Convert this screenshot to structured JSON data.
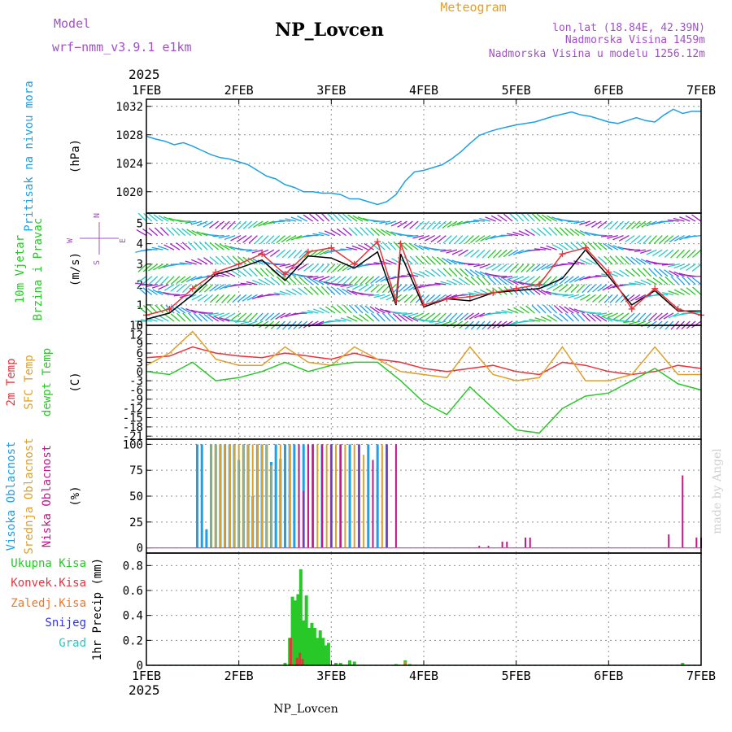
{
  "header": {
    "model_label": "Model",
    "model_value": "wrf−nmm_v3.9.1  e1km",
    "station": "NP_Lovcen",
    "product": "Meteogram",
    "coords": "lon,lat (18.84E, 42.39N)",
    "elevation": "Nadmorska Visina 1459m",
    "model_elevation": "Nadmorska Visina u modelu 1256.12m",
    "year_top": "2025",
    "year_bottom": "2025",
    "footer_station": "NP_Lovcen",
    "credit": "made by Angel"
  },
  "colors": {
    "pressure": "#1ea0e6",
    "wind_black": "#000000",
    "wind_red": "#e8323c",
    "temp2m": "#e8323c",
    "sfc": "#e0a028",
    "dewpt": "#28c828",
    "high_cloud": "#1ea0e6",
    "mid_cloud": "#e0a028",
    "low_cloud": "#c8148c",
    "total_precip": "#28c828",
    "conv_precip": "#e8323c",
    "frozen": "#f07828",
    "snow": "#3232e6",
    "hail": "#28c8c8"
  },
  "chart_data": [
    {
      "type": "line",
      "ylabel_lines": [
        "Pritisak na nivou mora"
      ],
      "unit": "(hPa)",
      "x_ticks": [
        "1FEB",
        "2FEB",
        "3FEB",
        "4FEB",
        "5FEB",
        "6FEB",
        "7FEB"
      ],
      "ylim": [
        1017,
        1033
      ],
      "yticks": [
        1020,
        1024,
        1028,
        1032
      ],
      "series": [
        {
          "x": [
            0,
            0.1,
            0.2,
            0.3,
            0.4,
            0.5,
            0.6,
            0.7,
            0.8,
            0.9,
            1.0,
            1.1,
            1.2,
            1.3,
            1.4,
            1.5,
            1.6,
            1.7,
            1.8,
            1.9,
            2.0,
            2.1,
            2.2,
            2.3,
            2.4,
            2.5,
            2.6,
            2.7,
            2.8,
            2.9,
            3.0,
            3.1,
            3.2,
            3.3,
            3.4,
            3.5,
            3.6,
            3.7,
            3.8,
            3.9,
            4.0,
            4.1,
            4.2,
            4.3,
            4.4,
            4.5,
            4.6,
            4.7,
            4.8,
            4.9,
            5.0,
            5.1,
            5.2,
            5.3,
            5.4,
            5.5,
            5.6,
            5.7,
            5.8,
            5.9,
            6.0
          ],
          "y": [
            1027.8,
            1027.4,
            1027.1,
            1026.6,
            1026.9,
            1026.4,
            1025.8,
            1025.2,
            1024.8,
            1024.6,
            1024.2,
            1023.8,
            1023.0,
            1022.2,
            1021.8,
            1021.0,
            1020.6,
            1020.0,
            1020.0,
            1019.8,
            1019.8,
            1019.6,
            1019.0,
            1019.0,
            1018.6,
            1018.2,
            1018.6,
            1019.6,
            1021.5,
            1022.8,
            1023.0,
            1023.4,
            1023.8,
            1024.6,
            1025.6,
            1026.8,
            1027.9,
            1028.4,
            1028.8,
            1029.1,
            1029.4,
            1029.6,
            1029.8,
            1030.2,
            1030.6,
            1030.9,
            1031.2,
            1030.8,
            1030.6,
            1030.2,
            1029.8,
            1029.6,
            1030.0,
            1030.4,
            1030.0,
            1029.8,
            1030.8,
            1031.6,
            1031.0,
            1031.3,
            1031.3
          ]
        }
      ]
    },
    {
      "type": "line",
      "ylabel_lines": [
        "10m Vjetar",
        "Brzina i Pravac"
      ],
      "unit": "(m/s)",
      "compass": [
        "N",
        "E",
        "W",
        "S"
      ],
      "ylim": [
        0,
        5.5
      ],
      "yticks": [
        0,
        1,
        2,
        3,
        4,
        5
      ],
      "series": [
        {
          "x": [
            0,
            0.25,
            0.5,
            0.75,
            1.0,
            1.25,
            1.5,
            1.75,
            2.0,
            2.25,
            2.5,
            2.7,
            2.75,
            3.0,
            3.25,
            3.5,
            3.75,
            4.0,
            4.25,
            4.5,
            4.75,
            5.0,
            5.25,
            5.5,
            5.75,
            6.0
          ],
          "y": [
            0.3,
            0.6,
            1.5,
            2.5,
            2.8,
            3.2,
            2.2,
            3.4,
            3.3,
            2.8,
            3.6,
            1.0,
            3.5,
            0.9,
            1.3,
            1.2,
            1.6,
            1.7,
            1.8,
            2.3,
            3.7,
            2.4,
            1.0,
            1.7,
            0.7,
            0.7
          ]
        },
        {
          "x": [
            0,
            0.25,
            0.5,
            0.75,
            1.0,
            1.25,
            1.5,
            1.75,
            2.0,
            2.25,
            2.5,
            2.7,
            2.75,
            3.0,
            3.25,
            3.5,
            3.75,
            4.0,
            4.25,
            4.5,
            4.75,
            5.0,
            5.25,
            5.5,
            5.75,
            6.0
          ],
          "y": [
            0.5,
            0.8,
            1.8,
            2.6,
            3.0,
            3.5,
            2.5,
            3.6,
            3.8,
            3.0,
            4.1,
            1.2,
            4.0,
            1.0,
            1.3,
            1.4,
            1.6,
            1.8,
            2.0,
            3.5,
            3.8,
            2.6,
            0.8,
            1.8,
            0.8,
            0.5
          ]
        }
      ],
      "barb_rows": [
        0.2,
        0.6,
        1.5,
        2.0,
        2.4,
        3.0,
        3.7,
        4.4,
        5.1
      ]
    },
    {
      "type": "line",
      "ylabel_lines": [
        "2m Temp",
        "SFC Temp",
        "dewpt Temp"
      ],
      "unit": "(C)",
      "ylim": [
        -22,
        15
      ],
      "yticks": [
        -21,
        -18,
        -15,
        -12,
        -9,
        -6,
        -3,
        0,
        3,
        6,
        9,
        12,
        15
      ],
      "series": [
        {
          "x": [
            0,
            0.25,
            0.5,
            0.75,
            1.0,
            1.25,
            1.5,
            1.75,
            2.0,
            2.25,
            2.5,
            2.75,
            3.0,
            3.25,
            3.5,
            3.75,
            4.0,
            4.25,
            4.5,
            4.75,
            5.0,
            5.25,
            5.5,
            5.75,
            6.0
          ],
          "y": [
            4.5,
            5,
            8,
            6,
            5,
            4.5,
            6,
            5,
            4,
            6,
            4,
            3,
            1,
            0,
            1,
            2,
            0,
            -1,
            3,
            2,
            0,
            -1,
            0,
            2,
            1
          ]
        },
        {
          "x": [
            0,
            0.25,
            0.5,
            0.75,
            1.0,
            1.25,
            1.5,
            1.75,
            2.0,
            2.25,
            2.5,
            2.75,
            3.0,
            3.25,
            3.5,
            3.75,
            4.0,
            4.25,
            4.5,
            4.75,
            5.0,
            5.25,
            5.5,
            5.75,
            6.0
          ],
          "y": [
            2,
            6,
            13,
            4,
            2,
            2,
            8,
            3,
            2,
            8,
            4,
            0,
            -1,
            -2,
            8,
            -1,
            -3,
            -2,
            8,
            -3,
            -3,
            -1,
            8,
            -1,
            -1
          ]
        },
        {
          "x": [
            0,
            0.25,
            0.5,
            0.75,
            1.0,
            1.25,
            1.5,
            1.75,
            2.0,
            2.25,
            2.5,
            2.75,
            3.0,
            3.25,
            3.5,
            3.75,
            4.0,
            4.25,
            4.5,
            4.75,
            5.0,
            5.25,
            5.5,
            5.75,
            6.0
          ],
          "y": [
            0,
            -1,
            3,
            -3,
            -2,
            0,
            3,
            0,
            2,
            3,
            3,
            -3,
            -10,
            -14,
            -5,
            -12,
            -19,
            -20,
            -12,
            -8,
            -7,
            -3,
            1,
            -4,
            -6
          ]
        }
      ]
    },
    {
      "type": "bar",
      "ylabel_lines": [
        "Visoka Oblacnost",
        "Srednja Oblacnost",
        "Niska Oblacnost"
      ],
      "unit": "(%)",
      "ylim": [
        -5,
        105
      ],
      "yticks": [
        0,
        25,
        50,
        75,
        100
      ],
      "series": [
        {
          "x": [
            0.55,
            0.6,
            0.65,
            0.7,
            0.75,
            0.8,
            0.85,
            0.9,
            0.95,
            1.0,
            1.05,
            1.1,
            1.15,
            1.2,
            1.25,
            1.3,
            1.35,
            1.4,
            1.45,
            1.5,
            1.55,
            1.6,
            1.7,
            1.8,
            1.9,
            2.0,
            2.1,
            2.2,
            2.3,
            2.4,
            2.5,
            2.6
          ],
          "y": [
            100,
            100,
            18,
            100,
            100,
            100,
            100,
            100,
            100,
            85,
            100,
            100,
            50,
            100,
            100,
            100,
            83,
            100,
            86,
            100,
            100,
            100,
            100,
            100,
            100,
            100,
            100,
            100,
            100,
            100,
            100,
            100
          ]
        },
        {
          "x": [
            0.7,
            0.75,
            0.8,
            0.85,
            0.9,
            0.95,
            1.0,
            1.05,
            1.1,
            1.15,
            1.2,
            1.25,
            1.3,
            1.35,
            1.45,
            1.55,
            1.65,
            1.75,
            1.85,
            1.95,
            2.05,
            2.15,
            2.25,
            2.35,
            2.45,
            2.55
          ],
          "y": [
            100,
            100,
            100,
            100,
            100,
            100,
            100,
            100,
            100,
            100,
            100,
            100,
            100,
            80,
            100,
            100,
            100,
            100,
            100,
            100,
            100,
            100,
            100,
            90,
            55,
            100
          ]
        },
        {
          "x": [
            1.65,
            1.7,
            1.75,
            1.8,
            1.9,
            2.0,
            2.1,
            2.3,
            2.45,
            2.6,
            2.7,
            3.6,
            3.7,
            3.85,
            3.9,
            4.1,
            4.15,
            4.35,
            5.65,
            5.8,
            5.95,
            6.0,
            6.9
          ],
          "y": [
            100,
            55,
            100,
            100,
            100,
            100,
            100,
            100,
            85,
            100,
            100,
            2,
            2,
            6,
            6,
            10,
            10,
            0,
            13,
            70,
            10,
            10,
            10
          ]
        }
      ]
    },
    {
      "type": "bar",
      "ylabel_lines": [
        "Ukupna Kisa",
        "Konvek.Kisa",
        "Zaledj.Kisa",
        "Snijeg",
        "Grad"
      ],
      "unit": "1hr Precip (mm)",
      "ylim": [
        0,
        0.9
      ],
      "yticks": [
        0,
        0.2,
        0.4,
        0.6,
        0.8
      ],
      "x_ticks": [
        "1FEB",
        "2FEB",
        "3FEB",
        "4FEB",
        "5FEB",
        "6FEB",
        "7FEB"
      ],
      "series": [
        {
          "x": [
            1.5,
            1.55,
            1.58,
            1.61,
            1.64,
            1.67,
            1.7,
            1.73,
            1.76,
            1.79,
            1.82,
            1.85,
            1.88,
            1.91,
            1.94,
            1.97,
            2.05,
            2.1,
            2.2,
            2.25,
            2.7,
            2.8,
            2.85,
            5.8
          ],
          "y": [
            0.02,
            0.22,
            0.55,
            0.52,
            0.57,
            0.77,
            0.36,
            0.56,
            0.3,
            0.34,
            0.3,
            0.22,
            0.28,
            0.22,
            0.16,
            0.18,
            0.02,
            0.02,
            0.04,
            0.03,
            0.01,
            0.04,
            0.01,
            0.02
          ]
        },
        {
          "x": [
            1.56,
            1.63,
            1.66,
            1.69
          ],
          "y": [
            0.22,
            0.06,
            0.1,
            0.05
          ]
        },
        {
          "x": [
            2.8
          ],
          "y": [
            0.03
          ]
        }
      ]
    }
  ]
}
